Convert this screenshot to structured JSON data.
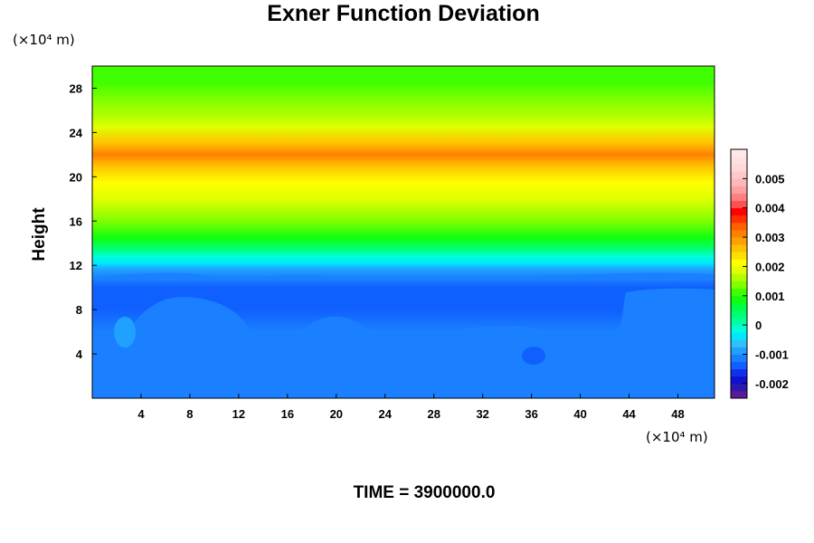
{
  "chart_data": {
    "type": "heatmap",
    "title": "Exner Function Deviation",
    "ylabel": "Height",
    "xlabel": "",
    "x_unit": "(×10⁴ m)",
    "y_unit": "(×10⁴ m)",
    "xlim": [
      0,
      51
    ],
    "ylim": [
      0,
      30
    ],
    "x_ticks": [
      4,
      8,
      12,
      16,
      20,
      24,
      28,
      32,
      36,
      40,
      44,
      48
    ],
    "y_ticks": [
      4,
      8,
      12,
      16,
      20,
      24,
      28
    ],
    "colorbar": {
      "min": -0.0025,
      "max": 0.006,
      "step": 0.00025,
      "tick_values": [
        -0.002,
        -0.001,
        0,
        0.001,
        0.002,
        0.003,
        0.004,
        0.005
      ],
      "tick_labels": [
        "-0.002",
        "-0.001",
        "0",
        "0.001",
        "0.002",
        "0.003",
        "0.004",
        "0.005"
      ],
      "colors": [
        "#5a1a9a",
        "#2a1ab0",
        "#1010d0",
        "#1030f0",
        "#1060ff",
        "#1a80ff",
        "#20a0ff",
        "#30c0ff",
        "#00e8ff",
        "#00ffd8",
        "#00ffa0",
        "#00ff70",
        "#00ff40",
        "#10ff10",
        "#40ff00",
        "#80ff00",
        "#b0ff00",
        "#e0ff00",
        "#ffff00",
        "#ffe000",
        "#ffc000",
        "#ffa000",
        "#ff8000",
        "#ff6000",
        "#ff3000",
        "#ff0000",
        "#ff5050",
        "#ff8080",
        "#ffa0a0",
        "#ffb8b8",
        "#ffc8c8",
        "#ffd8d8",
        "#ffe0e0",
        "#ffe8e8"
      ]
    },
    "vertical_profile": {
      "heights": [
        0,
        2,
        4,
        6,
        8,
        10,
        10.8,
        11.6,
        12.2,
        12.8,
        13.5,
        14.5,
        16,
        18,
        19.5,
        21,
        22,
        23,
        24.5,
        25.5,
        27,
        28.5,
        30
      ],
      "values": [
        -0.00115,
        -0.00118,
        -0.00122,
        -0.00125,
        -0.00128,
        -0.0013,
        -0.0011,
        -0.0008,
        -0.0005,
        -0.0001,
        0.0004,
        0.0009,
        0.0014,
        0.0019,
        0.0022,
        0.0027,
        0.003,
        0.0027,
        0.0019,
        0.0016,
        0.0014,
        0.0012,
        0.0011
      ]
    }
  },
  "footer": {
    "time_label": "TIME = 3900000.0"
  }
}
